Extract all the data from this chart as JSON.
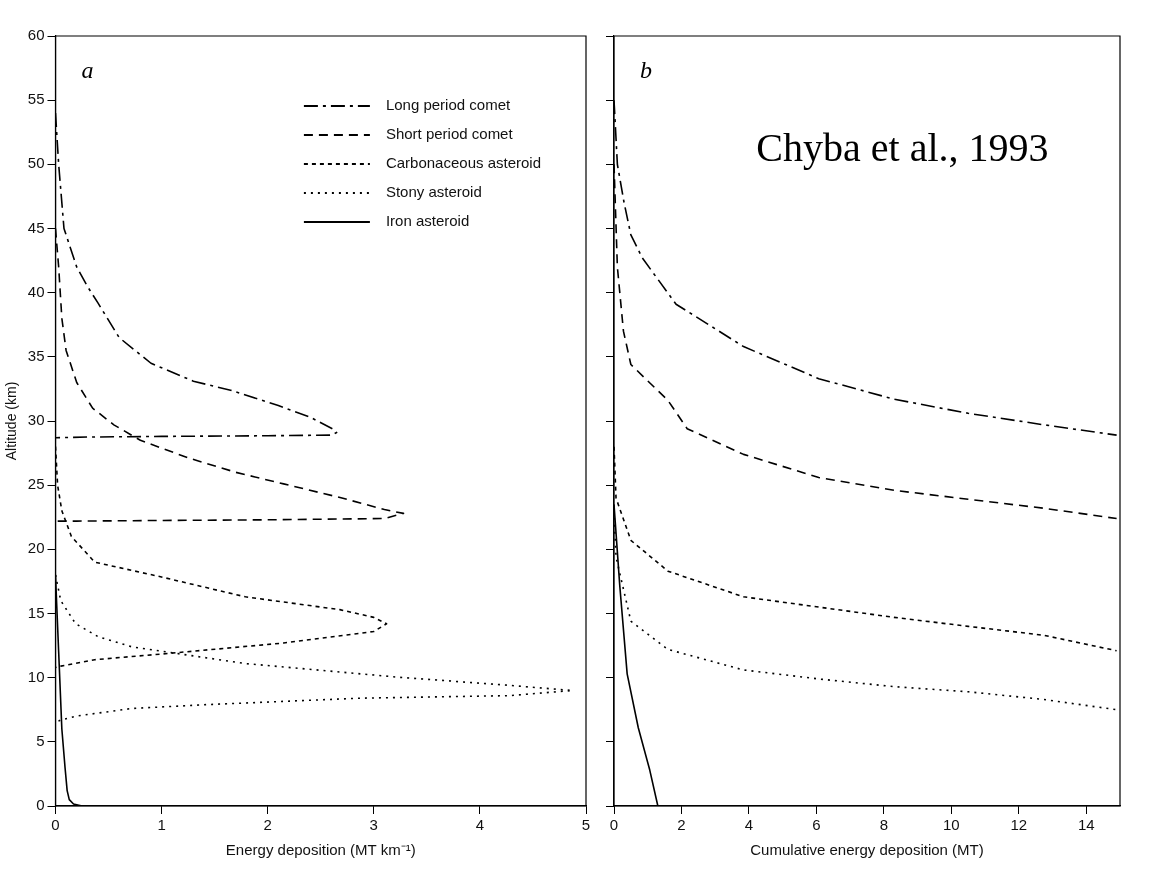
{
  "chart_data": [
    {
      "type": "line",
      "xlabel": "Energy deposition (MT km⁻¹)",
      "ylabel": "Altitude (km)",
      "annotations": [
        "a"
      ],
      "xlim": [
        0,
        5
      ],
      "xticks": [
        0,
        1,
        2,
        3,
        4,
        5
      ],
      "ylim": [
        0,
        60
      ],
      "yticks": [
        0,
        5,
        10,
        15,
        20,
        25,
        30,
        35,
        40,
        45,
        50,
        55,
        60
      ],
      "grid": false,
      "legend": "top right",
      "series": [
        {
          "name": "Long period comet",
          "color": "#000000",
          "line_style": "dashdot",
          "x": [
            0,
            0.03,
            0.08,
            0.2,
            0.3,
            0.4,
            0.6,
            0.9,
            1.3,
            1.65,
            2.1,
            2.4,
            2.61,
            2.65,
            2.6,
            2,
            1,
            0.3,
            0
          ],
          "values": [
            54,
            50,
            45,
            42,
            40.5,
            39.2,
            36.5,
            34.5,
            33.1,
            32.4,
            31.2,
            30.3,
            29.4,
            29.1,
            28.9,
            28.85,
            28.8,
            28.75,
            28.7
          ]
        },
        {
          "name": "Short period comet",
          "color": "#000000",
          "line_style": "dashed",
          "x": [
            0,
            0.03,
            0.06,
            0.1,
            0.2,
            0.35,
            0.55,
            0.8,
            1.26,
            1.7,
            2.15,
            2.7,
            3.1,
            3.28,
            3.1,
            2,
            1,
            0.2,
            0
          ],
          "values": [
            45,
            42,
            38,
            35.5,
            33,
            31,
            29.7,
            28.5,
            27.1,
            26,
            25.1,
            24,
            23.1,
            22.8,
            22.4,
            22.3,
            22.25,
            22.2,
            22.2
          ]
        },
        {
          "name": "Carbonaceous asteroid",
          "color": "#000000",
          "line_style": "shortdash",
          "x": [
            0,
            0.02,
            0.06,
            0.15,
            0.37,
            0.97,
            1.79,
            2.68,
            3.0,
            3.12,
            3.0,
            2.15,
            1.08,
            0.37,
            0.05,
            0
          ],
          "values": [
            28,
            25,
            23,
            21,
            19,
            17.9,
            16.3,
            15.3,
            14.7,
            14.2,
            13.6,
            12.7,
            11.9,
            11.4,
            10.9,
            10.8
          ]
        },
        {
          "name": "Stony asteroid",
          "color": "#000000",
          "line_style": "dotted",
          "x": [
            0,
            0.05,
            0.19,
            0.4,
            0.72,
            1.79,
            3.21,
            4.28,
            4.87,
            4.28,
            2.86,
            1.43,
            0.72,
            0.19,
            0.05,
            0
          ],
          "values": [
            18,
            16,
            14.2,
            13.2,
            12.4,
            11.1,
            10.05,
            9.4,
            9,
            8.6,
            8.4,
            7.9,
            7.6,
            7,
            6.7,
            6.5
          ]
        },
        {
          "name": "Iron asteroid",
          "color": "#000000",
          "line_style": "solid",
          "x": [
            0,
            0.03,
            0.06,
            0.09,
            0.11,
            0.13,
            0.17,
            0.25
          ],
          "values": [
            18,
            12,
            6,
            3,
            1.2,
            0.5,
            0.15,
            0
          ]
        }
      ]
    },
    {
      "type": "line",
      "xlabel": "Cumulative energy deposition (MT)",
      "annotations": [
        "b",
        "Chyba et al., 1993"
      ],
      "xlim": [
        0,
        15
      ],
      "xticks": [
        0,
        2,
        4,
        6,
        8,
        10,
        12,
        14
      ],
      "ylim": [
        0,
        60
      ],
      "yticks": [
        0,
        5,
        10,
        15,
        20,
        25,
        30,
        35,
        40,
        45,
        50,
        55,
        60
      ],
      "tick_labels": "x",
      "grid": false,
      "series": [
        {
          "color": "#000000",
          "line_style": "dashdot",
          "x": [
            0,
            0.1,
            0.3,
            0.5,
            0.84,
            1.84,
            3.84,
            6.07,
            8.3,
            10.5,
            12.75,
            14.9
          ],
          "values": [
            55,
            50,
            47,
            44.5,
            42.7,
            39.1,
            35.8,
            33.3,
            31.7,
            30.6,
            29.7,
            28.9
          ]
        },
        {
          "color": "#000000",
          "line_style": "dashed",
          "x": [
            0,
            0.1,
            0.28,
            0.5,
            1.6,
            2.17,
            3.84,
            6.07,
            8.3,
            10.5,
            12.75,
            14.9
          ],
          "values": [
            50,
            42,
            37,
            34.4,
            31.6,
            29.4,
            27.4,
            25.6,
            24.6,
            23.9,
            23.2,
            22.4
          ]
        },
        {
          "color": "#000000",
          "line_style": "shortdash",
          "x": [
            0,
            0.06,
            0.5,
            1.6,
            3.84,
            6.07,
            8.3,
            10.5,
            12.75,
            14.9
          ],
          "values": [
            28,
            24,
            20.7,
            18.3,
            16.3,
            15.5,
            14.7,
            14,
            13.3,
            12.1
          ]
        },
        {
          "color": "#000000",
          "line_style": "dotted",
          "x": [
            0,
            0.06,
            0.5,
            1.6,
            3.84,
            6.07,
            8.3,
            10.5,
            12.75,
            14.9
          ],
          "values": [
            23,
            19.4,
            14.4,
            12.2,
            10.6,
            9.9,
            9.3,
            8.9,
            8.3,
            7.5
          ]
        },
        {
          "color": "#000000",
          "line_style": "solid",
          "x": [
            0,
            0.17,
            0.39,
            0.72,
            1.06,
            1.3
          ],
          "values": [
            23.5,
            17.2,
            10.3,
            6.1,
            2.8,
            0
          ]
        }
      ]
    }
  ]
}
